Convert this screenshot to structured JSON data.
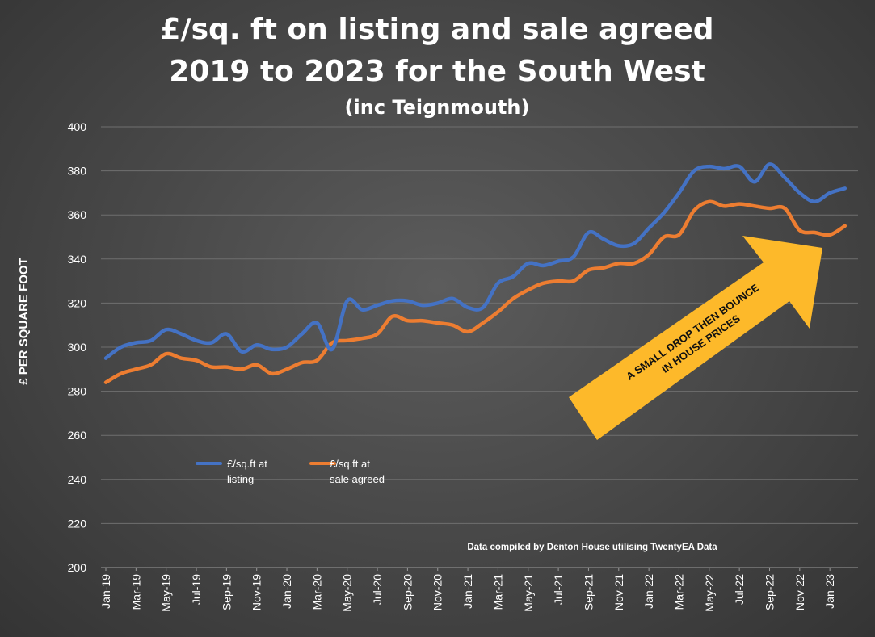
{
  "title": {
    "line1": "£/sq. ft on listing and sale agreed",
    "line2": "2019 to 2023 for the South West",
    "line3": "(inc Teignmouth)"
  },
  "annotation": {
    "arrow_line1": "A SMALL DROP THEN BOUNCE",
    "arrow_line2": "IN HOUSE PRICES",
    "source_note": "Data compiled by Denton House utilising TwentyEA Data"
  },
  "legend": {
    "position": "lower-left inside plot",
    "items": [
      {
        "line1": "£/sq.ft at",
        "line2": "listing"
      },
      {
        "line1": "£/sq.ft at",
        "line2": "sale agreed"
      }
    ]
  },
  "colors": {
    "listing": "#4472C4",
    "sale_agreed": "#ED7D31",
    "arrow": "#FDB92A",
    "grid": "#6f6f6f"
  },
  "chart_data": {
    "type": "line",
    "ylabel": "£ PER SQUARE FOOT",
    "xlabel": "",
    "ylim": [
      200,
      400
    ],
    "yticks": [
      200,
      220,
      240,
      260,
      280,
      300,
      320,
      340,
      360,
      380,
      400
    ],
    "grid": true,
    "x_tick_labels": [
      "Jan-19",
      "Mar-19",
      "May-19",
      "Jul-19",
      "Sep-19",
      "Nov-19",
      "Jan-20",
      "Mar-20",
      "May-20",
      "Jul-20",
      "Sep-20",
      "Nov-20",
      "Jan-21",
      "Mar-21",
      "May-21",
      "Jul-21",
      "Sep-21",
      "Nov-21",
      "Jan-22",
      "Mar-22",
      "May-22",
      "Jul-22",
      "Sep-22",
      "Nov-22",
      "Jan-23"
    ],
    "categories": [
      "Jan-19",
      "Feb-19",
      "Mar-19",
      "Apr-19",
      "May-19",
      "Jun-19",
      "Jul-19",
      "Aug-19",
      "Sep-19",
      "Oct-19",
      "Nov-19",
      "Dec-19",
      "Jan-20",
      "Feb-20",
      "Mar-20",
      "Apr-20",
      "May-20",
      "Jun-20",
      "Jul-20",
      "Aug-20",
      "Sep-20",
      "Oct-20",
      "Nov-20",
      "Dec-20",
      "Jan-21",
      "Feb-21",
      "Mar-21",
      "Apr-21",
      "May-21",
      "Jun-21",
      "Jul-21",
      "Aug-21",
      "Sep-21",
      "Oct-21",
      "Nov-21",
      "Dec-21",
      "Jan-22",
      "Feb-22",
      "Mar-22",
      "Apr-22",
      "May-22",
      "Jun-22",
      "Jul-22",
      "Aug-22",
      "Sep-22",
      "Oct-22",
      "Nov-22",
      "Dec-22",
      "Jan-23",
      "Feb-23"
    ],
    "series": [
      {
        "name": "£/sq.ft at listing",
        "values": [
          295,
          300,
          302,
          303,
          308,
          306,
          303,
          302,
          306,
          298,
          301,
          299,
          300,
          306,
          311,
          299,
          321,
          317,
          319,
          321,
          321,
          319,
          320,
          322,
          318,
          318,
          329,
          332,
          338,
          337,
          339,
          341,
          352,
          349,
          346,
          347,
          354,
          361,
          370,
          380,
          382,
          381,
          382,
          375,
          383,
          377,
          370,
          366,
          370,
          372
        ]
      },
      {
        "name": "£/sq.ft at sale agreed",
        "values": [
          284,
          288,
          290,
          292,
          297,
          295,
          294,
          291,
          291,
          290,
          292,
          288,
          290,
          293,
          294,
          302,
          303,
          304,
          306,
          314,
          312,
          312,
          311,
          310,
          307,
          311,
          316,
          322,
          326,
          329,
          330,
          330,
          335,
          336,
          338,
          338,
          342,
          350,
          351,
          362,
          366,
          364,
          365,
          364,
          363,
          363,
          353,
          352,
          351,
          355
        ]
      }
    ]
  }
}
